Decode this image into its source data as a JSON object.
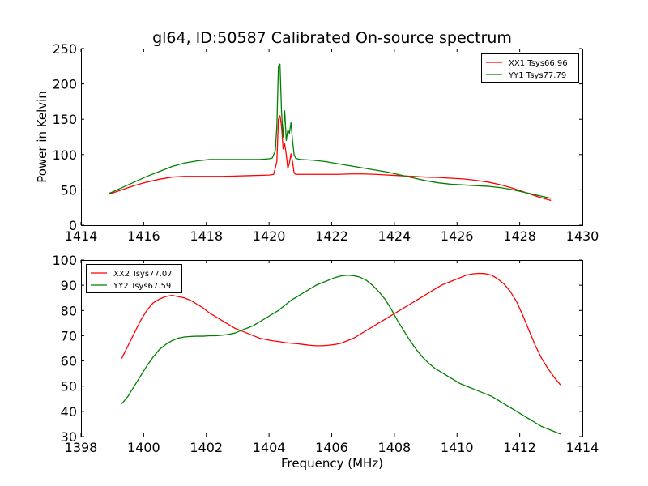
{
  "figure": {
    "title": "gl64, ID:50587 Calibrated On-source spectrum"
  },
  "chart_data": [
    {
      "type": "line",
      "title": "gl64, ID:50587 Calibrated On-source spectrum",
      "xlabel": "",
      "ylabel": "Power in Kelvin",
      "xlim": [
        1414,
        1430
      ],
      "ylim": [
        0,
        250
      ],
      "xticks": [
        1414,
        1416,
        1418,
        1420,
        1422,
        1424,
        1426,
        1428,
        1430
      ],
      "yticks": [
        0,
        50,
        100,
        150,
        200,
        250
      ],
      "grid": false,
      "legend_position": "top-right",
      "series": [
        {
          "name": "XX1 Tsys66.96",
          "color": "#ff0000",
          "x": [
            1414.9,
            1415.3,
            1415.7,
            1416.1,
            1416.5,
            1416.9,
            1417.3,
            1417.7,
            1418.1,
            1418.5,
            1418.9,
            1419.3,
            1419.7,
            1420.0,
            1420.15,
            1420.25,
            1420.3,
            1420.35,
            1420.4,
            1420.45,
            1420.5,
            1420.55,
            1420.6,
            1420.65,
            1420.7,
            1420.75,
            1420.8,
            1420.85,
            1420.9,
            1421.0,
            1421.4,
            1421.8,
            1422.2,
            1422.6,
            1423.0,
            1423.4,
            1423.8,
            1424.2,
            1424.6,
            1425.0,
            1425.4,
            1425.8,
            1426.2,
            1426.6,
            1427.0,
            1427.4,
            1427.8,
            1428.2,
            1428.6,
            1429.0
          ],
          "y": [
            44,
            50,
            56,
            61,
            65,
            68,
            69,
            69,
            69,
            69,
            69.5,
            70,
            70.5,
            71,
            72,
            90,
            150,
            155,
            140,
            108,
            115,
            100,
            80,
            88,
            101,
            90,
            74,
            72,
            72,
            72,
            72,
            72,
            72,
            72.5,
            72.5,
            72,
            71,
            70,
            69,
            68,
            67.5,
            66.5,
            65.5,
            63.5,
            61,
            57,
            52,
            46,
            40,
            35
          ]
        },
        {
          "name": "YY1 Tsys77.79",
          "color": "#008000",
          "x": [
            1414.9,
            1415.3,
            1415.7,
            1416.1,
            1416.5,
            1416.9,
            1417.3,
            1417.7,
            1418.1,
            1418.5,
            1418.9,
            1419.3,
            1419.7,
            1420.0,
            1420.1,
            1420.2,
            1420.25,
            1420.3,
            1420.35,
            1420.4,
            1420.45,
            1420.5,
            1420.55,
            1420.6,
            1420.65,
            1420.7,
            1420.75,
            1420.8,
            1420.85,
            1420.9,
            1421.0,
            1421.4,
            1421.8,
            1422.2,
            1422.6,
            1423.0,
            1423.4,
            1423.8,
            1424.2,
            1424.6,
            1425.0,
            1425.4,
            1425.8,
            1426.2,
            1426.6,
            1427.0,
            1427.4,
            1427.8,
            1428.2,
            1428.6,
            1429.0
          ],
          "y": [
            45,
            53,
            61,
            69,
            76,
            83,
            88,
            91,
            93,
            93,
            93,
            93,
            93,
            94,
            95,
            105,
            140,
            225,
            228,
            160,
            125,
            162,
            120,
            135,
            130,
            145,
            120,
            100,
            95,
            94,
            93,
            92,
            90,
            87,
            84,
            81,
            78,
            75,
            71,
            67,
            63,
            60,
            58,
            57,
            56,
            55,
            53,
            50,
            46,
            42,
            38
          ]
        }
      ]
    },
    {
      "type": "line",
      "title": "",
      "xlabel": "Frequency (MHz)",
      "ylabel": "",
      "xlim": [
        1398,
        1414
      ],
      "ylim": [
        30,
        100
      ],
      "xticks": [
        1398,
        1400,
        1402,
        1404,
        1406,
        1408,
        1410,
        1412,
        1414
      ],
      "yticks": [
        30,
        40,
        50,
        60,
        70,
        80,
        90,
        100
      ],
      "grid": false,
      "legend_position": "top-left",
      "series": [
        {
          "name": "XX2 Tsys77.07",
          "color": "#ff0000",
          "x": [
            1399.3,
            1399.5,
            1399.7,
            1399.9,
            1400.1,
            1400.3,
            1400.5,
            1400.7,
            1400.9,
            1401.1,
            1401.3,
            1401.5,
            1401.7,
            1401.9,
            1402.1,
            1402.3,
            1402.5,
            1402.7,
            1402.9,
            1403.1,
            1403.3,
            1403.5,
            1403.7,
            1403.9,
            1404.1,
            1404.3,
            1404.5,
            1404.7,
            1404.9,
            1405.1,
            1405.3,
            1405.5,
            1405.7,
            1405.9,
            1406.1,
            1406.3,
            1406.5,
            1406.7,
            1406.9,
            1407.1,
            1407.3,
            1407.5,
            1407.7,
            1407.9,
            1408.1,
            1408.3,
            1408.5,
            1408.7,
            1408.9,
            1409.1,
            1409.3,
            1409.5,
            1409.7,
            1409.9,
            1410.1,
            1410.3,
            1410.5,
            1410.7,
            1410.9,
            1411.1,
            1411.3,
            1411.5,
            1411.7,
            1411.9,
            1412.1,
            1412.3,
            1412.5,
            1412.7,
            1412.9,
            1413.1,
            1413.3
          ],
          "y": [
            61,
            66,
            71,
            76,
            80,
            83,
            84.5,
            85.5,
            86,
            85.5,
            85,
            84,
            82.5,
            81,
            79,
            77.5,
            76,
            74.5,
            73,
            72,
            71,
            70,
            69,
            68.5,
            68,
            67.7,
            67.3,
            67,
            66.8,
            66.5,
            66.2,
            66,
            66,
            66.2,
            66.5,
            67,
            68,
            69,
            70.5,
            72,
            73.5,
            75,
            76.5,
            78,
            79.5,
            81,
            82.5,
            84,
            85.5,
            87,
            88.5,
            90,
            91,
            92,
            93,
            94,
            94.5,
            94.7,
            94.6,
            94,
            92.5,
            90.5,
            87.5,
            83.5,
            78,
            72,
            66,
            61,
            57,
            53.5,
            50.5
          ]
        },
        {
          "name": "YY2 Tsys67.59",
          "color": "#008000",
          "x": [
            1399.3,
            1399.5,
            1399.7,
            1399.9,
            1400.1,
            1400.3,
            1400.5,
            1400.7,
            1400.9,
            1401.1,
            1401.3,
            1401.5,
            1401.7,
            1401.9,
            1402.1,
            1402.3,
            1402.5,
            1402.7,
            1402.9,
            1403.1,
            1403.3,
            1403.5,
            1403.7,
            1403.9,
            1404.1,
            1404.3,
            1404.5,
            1404.7,
            1404.9,
            1405.1,
            1405.3,
            1405.5,
            1405.7,
            1405.9,
            1406.1,
            1406.3,
            1406.5,
            1406.7,
            1406.9,
            1407.1,
            1407.3,
            1407.5,
            1407.7,
            1407.9,
            1408.1,
            1408.3,
            1408.5,
            1408.7,
            1408.9,
            1409.1,
            1409.3,
            1409.5,
            1409.7,
            1409.9,
            1410.1,
            1410.3,
            1410.5,
            1410.7,
            1410.9,
            1411.1,
            1411.3,
            1411.5,
            1411.7,
            1411.9,
            1412.1,
            1412.3,
            1412.5,
            1412.7,
            1412.9,
            1413.1,
            1413.3
          ],
          "y": [
            43,
            46,
            50,
            54,
            58,
            61.5,
            64.5,
            66.5,
            68,
            69,
            69.5,
            69.7,
            69.8,
            69.8,
            70,
            70,
            70.2,
            70.5,
            71,
            72,
            73,
            74,
            75.5,
            77,
            78.5,
            80,
            82,
            84,
            85.5,
            87,
            88.5,
            90,
            91,
            92,
            93,
            93.7,
            94,
            93.8,
            93.2,
            92,
            90,
            87.5,
            84.5,
            80.5,
            76,
            72,
            68,
            64.5,
            61.5,
            59,
            57,
            55.5,
            54,
            52.5,
            51,
            50,
            49,
            48,
            47,
            46,
            44.5,
            43,
            41.5,
            40,
            38.5,
            37,
            35.5,
            34,
            33,
            32,
            31
          ]
        }
      ]
    }
  ]
}
